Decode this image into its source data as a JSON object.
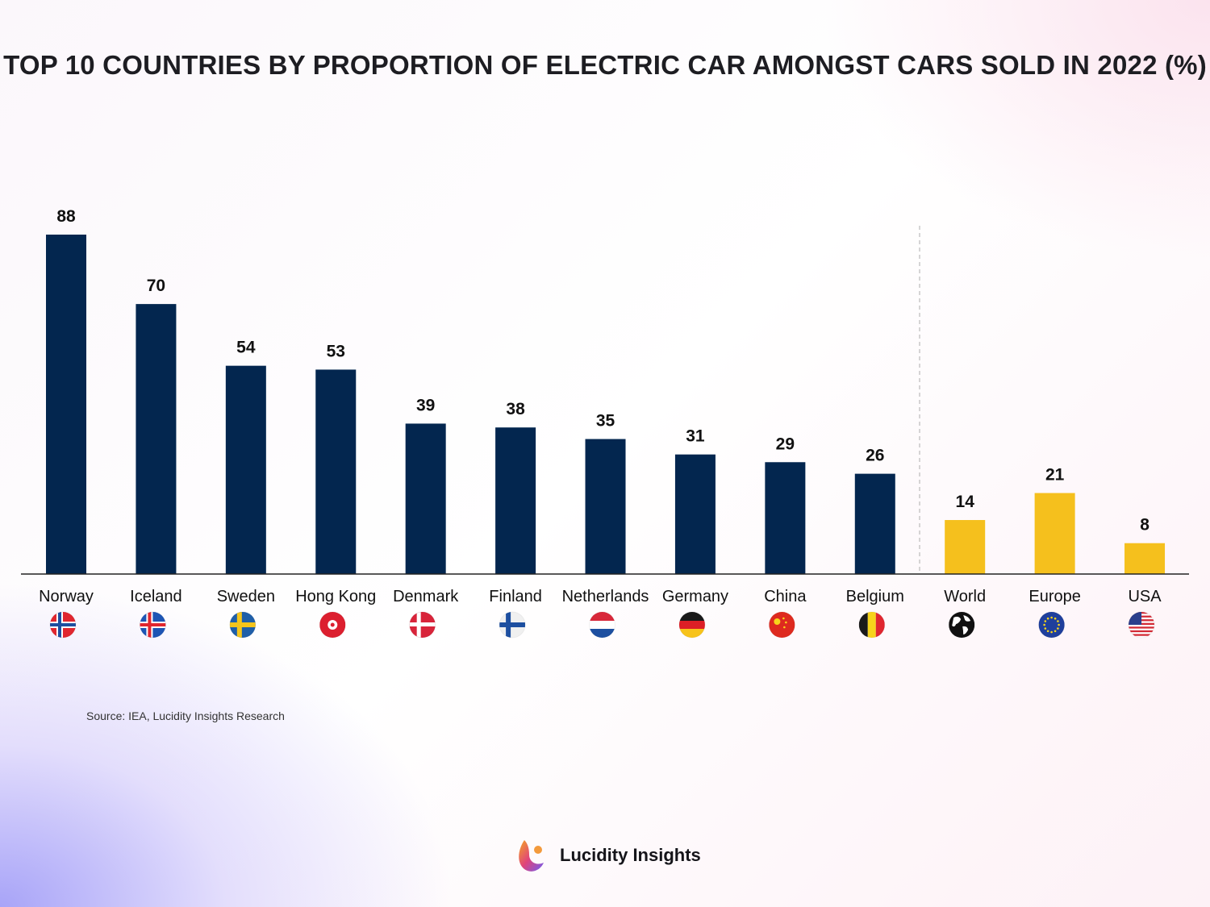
{
  "title": "TOP 10 COUNTRIES BY PROPORTION OF ELECTRIC CAR AMONGST CARS SOLD IN 2022 (%)",
  "source": "Source: IEA, Lucidity Insights Research",
  "brand": "Lucidity Insights",
  "colors": {
    "country": "#03264f",
    "aggregate": "#f5c01d"
  },
  "chart_data": {
    "type": "bar",
    "title": "TOP 10 COUNTRIES BY PROPORTION OF ELECTRIC CAR AMONGST CARS SOLD IN 2022 (%)",
    "categories": [
      "Norway",
      "Iceland",
      "Sweden",
      "Hong Kong",
      "Denmark",
      "Finland",
      "Netherlands",
      "Germany",
      "China",
      "Belgium",
      "World",
      "Europe",
      "USA"
    ],
    "values": [
      88,
      70,
      54,
      53,
      39,
      38,
      35,
      31,
      29,
      26,
      14,
      21,
      8
    ],
    "groups": [
      "country",
      "country",
      "country",
      "country",
      "country",
      "country",
      "country",
      "country",
      "country",
      "country",
      "aggregate",
      "aggregate",
      "aggregate"
    ],
    "flags": [
      "norway-flag",
      "iceland-flag",
      "sweden-flag",
      "hong-kong-flag",
      "denmark-flag",
      "finland-flag",
      "netherlands-flag",
      "germany-flag",
      "china-flag",
      "belgium-flag",
      "globe",
      "eu-flag",
      "usa-flag"
    ],
    "ylim": [
      0,
      88
    ],
    "grid": false,
    "data_labels": true,
    "xlabel": "",
    "ylabel": ""
  }
}
